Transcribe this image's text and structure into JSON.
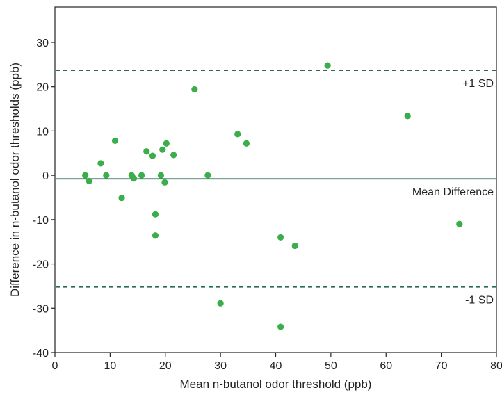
{
  "chart_data": {
    "type": "scatter",
    "title": "",
    "xlabel": "Mean n-butanol odor threshold (ppb)",
    "ylabel": "Difference in n-butanol odor thresholds (ppb)",
    "xlim": [
      0,
      80
    ],
    "ylim": [
      -40,
      38
    ],
    "xticks": [
      0,
      10,
      20,
      30,
      40,
      50,
      60,
      70,
      80
    ],
    "yticks": [
      -40,
      -30,
      -20,
      -10,
      0,
      10,
      20,
      30
    ],
    "grid": false,
    "point_color": "#3aae4a",
    "line_color": "#2a6b5a",
    "reference_lines": [
      {
        "label": "+1 SD",
        "y": 23.7,
        "style": "dashed"
      },
      {
        "label": "Mean Difference",
        "y": -0.8,
        "style": "solid"
      },
      {
        "label": "-1 SD",
        "y": -25.2,
        "style": "dashed"
      }
    ],
    "points": [
      {
        "x": 5.5,
        "y": 0.0
      },
      {
        "x": 6.2,
        "y": -1.3
      },
      {
        "x": 8.3,
        "y": 2.7
      },
      {
        "x": 9.3,
        "y": 0.0
      },
      {
        "x": 10.9,
        "y": 7.8
      },
      {
        "x": 12.1,
        "y": -5.1
      },
      {
        "x": 13.9,
        "y": 0.0
      },
      {
        "x": 14.3,
        "y": -0.7
      },
      {
        "x": 15.7,
        "y": 0.0
      },
      {
        "x": 16.6,
        "y": 5.4
      },
      {
        "x": 17.7,
        "y": 4.4
      },
      {
        "x": 18.2,
        "y": -8.8
      },
      {
        "x": 18.2,
        "y": -13.6
      },
      {
        "x": 19.2,
        "y": 0.0
      },
      {
        "x": 19.5,
        "y": 5.8
      },
      {
        "x": 19.9,
        "y": -1.6
      },
      {
        "x": 20.2,
        "y": 7.2
      },
      {
        "x": 21.5,
        "y": 4.6
      },
      {
        "x": 25.3,
        "y": 19.4
      },
      {
        "x": 27.7,
        "y": 0.0
      },
      {
        "x": 30.0,
        "y": -28.9
      },
      {
        "x": 33.1,
        "y": 9.3
      },
      {
        "x": 34.7,
        "y": 7.2
      },
      {
        "x": 40.9,
        "y": -14.0
      },
      {
        "x": 40.9,
        "y": -34.2
      },
      {
        "x": 43.5,
        "y": -15.9
      },
      {
        "x": 49.4,
        "y": 24.8
      },
      {
        "x": 63.9,
        "y": 13.4
      },
      {
        "x": 73.3,
        "y": -11.0
      }
    ]
  }
}
